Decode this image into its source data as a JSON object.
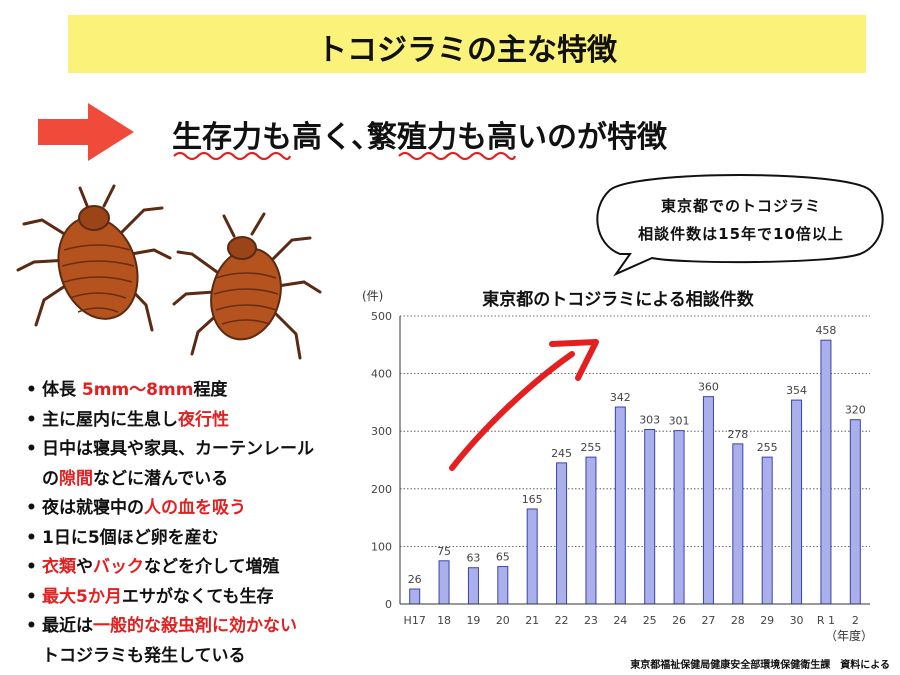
{
  "title": "トコジラミの主な特徴",
  "headline": "生存力も高く､繁殖力も高いのが特徴",
  "bubble": {
    "line1": "東京都でのトコジラミ",
    "line2": "相談件数は15年で10倍以上"
  },
  "bullets": [
    {
      "parts": [
        {
          "t": "体長  ",
          "red": false
        },
        {
          "t": "5mm～8mm",
          "red": true
        },
        {
          "t": "程度",
          "red": false
        }
      ],
      "cont": false
    },
    {
      "parts": [
        {
          "t": "主に屋内に生息し",
          "red": false
        },
        {
          "t": "夜行性",
          "red": true
        }
      ],
      "cont": false
    },
    {
      "parts": [
        {
          "t": "日中は寝具や家具、カーテンレール",
          "red": false
        }
      ],
      "cont": false
    },
    {
      "parts": [
        {
          "t": "の",
          "red": false
        },
        {
          "t": "隙間",
          "red": true
        },
        {
          "t": "などに潜んでいる",
          "red": false
        }
      ],
      "cont": true
    },
    {
      "parts": [
        {
          "t": "夜は就寝中の",
          "red": false
        },
        {
          "t": "人の血を吸う",
          "red": true
        }
      ],
      "cont": false
    },
    {
      "parts": [
        {
          "t": "1日に5個ほど卵を産む",
          "red": false
        }
      ],
      "cont": false
    },
    {
      "parts": [
        {
          "t": "衣類",
          "red": true
        },
        {
          "t": "や",
          "red": false
        },
        {
          "t": "バック",
          "red": true
        },
        {
          "t": "などを介して増殖",
          "red": false
        }
      ],
      "cont": false
    },
    {
      "parts": [
        {
          "t": "最大5か月",
          "red": true
        },
        {
          "t": "エサがなくても生存",
          "red": false
        }
      ],
      "cont": false
    },
    {
      "parts": [
        {
          "t": "最近は",
          "red": false
        },
        {
          "t": "一般的な殺虫剤に効かない",
          "red": true
        }
      ],
      "cont": false
    },
    {
      "parts": [
        {
          "t": "トコジラミも発生している",
          "red": false
        }
      ],
      "cont": true
    }
  ],
  "bullet_char": "•",
  "footnote": "東京都福祉保健局健康安全部環境保健衛生課　資料による",
  "colors": {
    "banner": "#fbf27a",
    "accent_red": "#e41f1f",
    "bar_fill": "#aab0ec",
    "bar_stroke": "#3a44a8"
  },
  "chart_data": {
    "type": "bar",
    "title": "東京都のトコジラミによる相談件数",
    "ylabel": "(件)",
    "xlabel": "（年度）",
    "categories": [
      "H17",
      "18",
      "19",
      "20",
      "21",
      "22",
      "23",
      "24",
      "25",
      "26",
      "27",
      "28",
      "29",
      "30",
      "R 1",
      "2"
    ],
    "values": [
      26,
      75,
      63,
      65,
      165,
      245,
      255,
      342,
      303,
      301,
      360,
      278,
      255,
      354,
      458,
      320
    ],
    "ylim": [
      0,
      500
    ],
    "yticks": [
      0,
      100,
      200,
      300,
      400,
      500
    ],
    "grid": true,
    "data_labels": true,
    "trend_arrow": true
  }
}
